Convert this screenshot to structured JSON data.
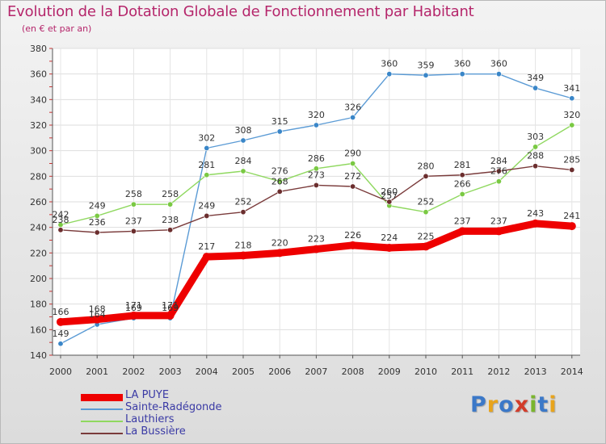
{
  "title": "Evolution de la Dotation Globale de Fonctionnement par Habitant",
  "subtitle": "(en € et par an)",
  "logo": {
    "text": "Proxiti",
    "colors": [
      "#3b78c8",
      "#e8a41c",
      "#3b78c8",
      "#d23c2a",
      "#7ab52d",
      "#3b78c8",
      "#e8a41c"
    ]
  },
  "chart_data": {
    "type": "line",
    "title": "Evolution de la Dotation Globale de Fonctionnement par Habitant",
    "subtitle": "(en € et par an)",
    "x": [
      "2000",
      "2001",
      "2002",
      "2003",
      "2004",
      "2005",
      "2006",
      "2007",
      "2008",
      "2009",
      "2010",
      "2011",
      "2012",
      "2013",
      "2014"
    ],
    "ylim": [
      140,
      380
    ],
    "yticks": [
      140,
      160,
      180,
      200,
      220,
      240,
      260,
      280,
      300,
      320,
      340,
      360,
      380
    ],
    "grid": true,
    "legend_position": "bottom-left",
    "series": [
      {
        "name": "Sainte-Radégonde",
        "color": "#5b9bd5",
        "marker": "#3a86c8",
        "values": [
          149,
          164,
          169,
          169,
          302,
          308,
          315,
          320,
          326,
          360,
          359,
          360,
          360,
          349,
          341
        ]
      },
      {
        "name": "Lauthiers",
        "color": "#8fd85f",
        "marker": "#7ac943",
        "values": [
          242,
          249,
          258,
          258,
          281,
          284,
          276,
          286,
          290,
          257,
          252,
          266,
          276,
          303,
          320
        ]
      },
      {
        "name": "La Bussière",
        "color": "#7a3b3b",
        "marker": "#6b2e2e",
        "values": [
          238,
          236,
          237,
          238,
          249,
          252,
          268,
          273,
          272,
          260,
          280,
          281,
          284,
          288,
          285
        ]
      },
      {
        "name": "LA PUYE",
        "color": "#ee0000",
        "marker": "#ee0000",
        "values": [
          166,
          168,
          171,
          171,
          217,
          218,
          220,
          223,
          226,
          224,
          225,
          237,
          237,
          243,
          241
        ]
      }
    ]
  }
}
